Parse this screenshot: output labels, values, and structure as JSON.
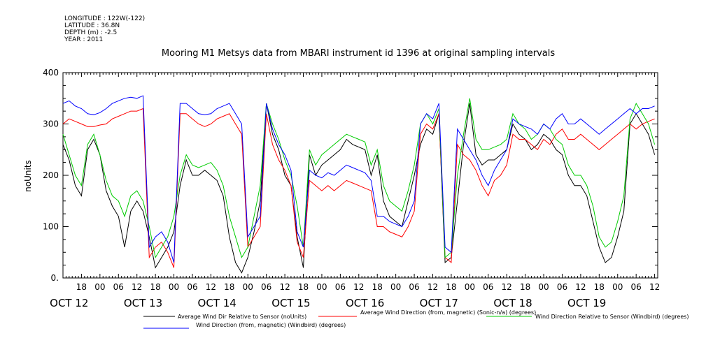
{
  "header": {
    "longitude": "LONGITUDE : 122W(-122)",
    "latitude": "LATITUDE : 36.8N",
    "depth": "DEPTH (m) : -2.5",
    "year": "YEAR : 2011"
  },
  "chart_data": {
    "type": "line",
    "title": "Mooring M1 Metsys data from MBARI instrument id 1396 at original sampling intervals",
    "ylabel": "noUnits",
    "ylim": [
      0,
      400
    ],
    "yticks": [
      "0.",
      "100",
      "200",
      "300",
      "400"
    ],
    "xlim_hours": [
      12,
      205
    ],
    "hour_ticks": [
      "18",
      "00",
      "06",
      "12",
      "18",
      "00",
      "06",
      "12",
      "18",
      "00",
      "06",
      "12",
      "18",
      "00",
      "06",
      "12",
      "18",
      "00",
      "06",
      "12",
      "18",
      "00",
      "06",
      "12",
      "18",
      "00",
      "06",
      "12",
      "18",
      "00",
      "06",
      "12"
    ],
    "day_labels": [
      "OCT 12",
      "OCT 13",
      "OCT 14",
      "OCT 15",
      "OCT 16",
      "OCT 17",
      "OCT 18",
      "OCT 19"
    ],
    "grid": false,
    "legend_position": "bottom",
    "series": [
      {
        "name": "Average Wind Dir Relative to Sensor (noUnits)",
        "color": "#000000",
        "x": [
          12,
          14,
          16,
          18,
          20,
          22,
          24,
          26,
          28,
          30,
          32,
          34,
          36,
          38,
          40,
          42,
          44,
          46,
          48,
          50,
          52,
          54,
          56,
          58,
          60,
          62,
          64,
          66,
          68,
          70,
          72,
          74,
          76,
          78,
          80,
          82,
          84,
          86,
          88,
          90,
          92,
          94,
          96,
          98,
          100,
          102,
          104,
          106,
          108,
          110,
          112,
          114,
          116,
          118,
          120,
          122,
          124,
          126,
          128,
          130,
          132,
          134,
          136,
          138,
          140,
          142,
          144,
          146,
          148,
          150,
          152,
          154,
          156,
          158,
          160,
          162,
          164,
          166,
          168,
          170,
          172,
          174,
          176,
          178,
          180,
          182,
          184,
          186,
          188,
          190,
          192,
          194,
          196,
          198,
          200,
          202,
          204
        ],
        "y": [
          260,
          230,
          180,
          160,
          250,
          270,
          240,
          170,
          140,
          120,
          60,
          130,
          150,
          130,
          80,
          20,
          40,
          60,
          90,
          180,
          230,
          200,
          200,
          210,
          200,
          190,
          160,
          80,
          30,
          10,
          40,
          90,
          150,
          340,
          280,
          250,
          200,
          180,
          80,
          20,
          240,
          200,
          220,
          230,
          240,
          250,
          270,
          260,
          255,
          250,
          200,
          240,
          150,
          120,
          110,
          100,
          150,
          200,
          260,
          290,
          280,
          320,
          30,
          40,
          150,
          260,
          340,
          240,
          220,
          230,
          230,
          240,
          250,
          300,
          280,
          270,
          250,
          260,
          280,
          270,
          250,
          240,
          200,
          180,
          180,
          160,
          110,
          60,
          30,
          40,
          80,
          130,
          300,
          320,
          300,
          280,
          240
        ]
      },
      {
        "name": "Average Wind Direction (from, magnetic) (Sonic-n/a) (degrees)",
        "color": "#ff0000",
        "x": [
          12,
          14,
          16,
          18,
          20,
          22,
          24,
          26,
          28,
          30,
          32,
          34,
          36,
          38,
          40,
          42,
          44,
          46,
          48,
          50,
          52,
          54,
          56,
          58,
          60,
          62,
          64,
          66,
          68,
          70,
          72,
          74,
          76,
          78,
          80,
          82,
          84,
          86,
          88,
          90,
          92,
          94,
          96,
          98,
          100,
          102,
          104,
          106,
          108,
          110,
          112,
          114,
          116,
          118,
          120,
          122,
          124,
          126,
          128,
          130,
          132,
          134,
          136,
          138,
          140,
          142,
          144,
          146,
          148,
          150,
          152,
          154,
          156,
          158,
          160,
          162,
          164,
          166,
          168,
          170,
          172,
          174,
          176,
          178,
          180,
          182,
          184,
          186,
          188,
          190,
          192,
          194,
          196,
          198,
          200,
          202,
          204
        ],
        "y": [
          300,
          310,
          305,
          300,
          295,
          295,
          298,
          300,
          310,
          315,
          320,
          325,
          325,
          330,
          40,
          60,
          70,
          50,
          20,
          320,
          320,
          310,
          300,
          295,
          300,
          310,
          315,
          320,
          300,
          280,
          60,
          80,
          100,
          320,
          260,
          230,
          210,
          180,
          70,
          40,
          190,
          180,
          170,
          180,
          170,
          180,
          190,
          185,
          180,
          175,
          170,
          100,
          100,
          90,
          85,
          80,
          100,
          130,
          280,
          300,
          290,
          320,
          40,
          30,
          260,
          240,
          230,
          210,
          180,
          160,
          190,
          200,
          220,
          280,
          270,
          270,
          260,
          250,
          270,
          260,
          280,
          290,
          270,
          270,
          280,
          270,
          260,
          250,
          260,
          270,
          280,
          290,
          300,
          290,
          300,
          305,
          310
        ]
      },
      {
        "name": "Wind Direction Relative to Sensor (Windbird) (degrees)",
        "color": "#00cc00",
        "x": [
          12,
          14,
          16,
          18,
          20,
          22,
          24,
          26,
          28,
          30,
          32,
          34,
          36,
          38,
          40,
          42,
          44,
          46,
          48,
          50,
          52,
          54,
          56,
          58,
          60,
          62,
          64,
          66,
          68,
          70,
          72,
          74,
          76,
          78,
          80,
          82,
          84,
          86,
          88,
          90,
          92,
          94,
          96,
          98,
          100,
          102,
          104,
          106,
          108,
          110,
          112,
          114,
          116,
          118,
          120,
          122,
          124,
          126,
          128,
          130,
          132,
          134,
          136,
          138,
          140,
          142,
          144,
          146,
          148,
          150,
          152,
          154,
          156,
          158,
          160,
          162,
          164,
          166,
          168,
          170,
          172,
          174,
          176,
          178,
          180,
          182,
          184,
          186,
          188,
          190,
          192,
          194,
          196,
          198,
          200,
          202,
          204
        ],
        "y": [
          280,
          240,
          200,
          180,
          260,
          280,
          240,
          190,
          160,
          150,
          120,
          160,
          170,
          150,
          100,
          40,
          60,
          80,
          120,
          200,
          240,
          220,
          215,
          220,
          225,
          210,
          180,
          120,
          80,
          40,
          60,
          120,
          180,
          340,
          300,
          270,
          230,
          200,
          140,
          60,
          250,
          220,
          240,
          250,
          260,
          270,
          280,
          275,
          270,
          265,
          220,
          250,
          180,
          150,
          140,
          130,
          170,
          220,
          300,
          320,
          300,
          330,
          40,
          50,
          200,
          280,
          350,
          270,
          250,
          250,
          255,
          260,
          270,
          320,
          300,
          290,
          270,
          280,
          300,
          290,
          270,
          260,
          220,
          200,
          200,
          180,
          140,
          80,
          60,
          70,
          110,
          160,
          310,
          340,
          320,
          300,
          260
        ]
      },
      {
        "name": "Wind Direction (from, magnetic) (Windbird) (degrees)",
        "color": "#0000ff",
        "x": [
          12,
          14,
          16,
          18,
          20,
          22,
          24,
          26,
          28,
          30,
          32,
          34,
          36,
          38,
          40,
          42,
          44,
          46,
          48,
          50,
          52,
          54,
          56,
          58,
          60,
          62,
          64,
          66,
          68,
          70,
          72,
          74,
          76,
          78,
          80,
          82,
          84,
          86,
          88,
          90,
          92,
          94,
          96,
          98,
          100,
          102,
          104,
          106,
          108,
          110,
          112,
          114,
          116,
          118,
          120,
          122,
          124,
          126,
          128,
          130,
          132,
          134,
          136,
          138,
          140,
          142,
          144,
          146,
          148,
          150,
          152,
          154,
          156,
          158,
          160,
          162,
          164,
          166,
          168,
          170,
          172,
          174,
          176,
          178,
          180,
          182,
          184,
          186,
          188,
          190,
          192,
          194,
          196,
          198,
          200,
          202,
          204
        ],
        "y": [
          340,
          345,
          335,
          330,
          320,
          318,
          322,
          330,
          340,
          345,
          350,
          352,
          350,
          355,
          60,
          80,
          90,
          70,
          30,
          340,
          340,
          330,
          320,
          318,
          320,
          330,
          335,
          340,
          320,
          300,
          80,
          100,
          120,
          340,
          290,
          260,
          240,
          210,
          90,
          60,
          210,
          200,
          195,
          205,
          200,
          210,
          220,
          215,
          210,
          205,
          190,
          120,
          120,
          110,
          105,
          100,
          120,
          150,
          300,
          320,
          310,
          340,
          60,
          50,
          290,
          270,
          250,
          230,
          200,
          180,
          210,
          230,
          250,
          310,
          300,
          295,
          290,
          280,
          300,
          290,
          310,
          320,
          300,
          300,
          310,
          300,
          290,
          280,
          290,
          300,
          310,
          320,
          330,
          320,
          330,
          330,
          335
        ]
      }
    ]
  }
}
